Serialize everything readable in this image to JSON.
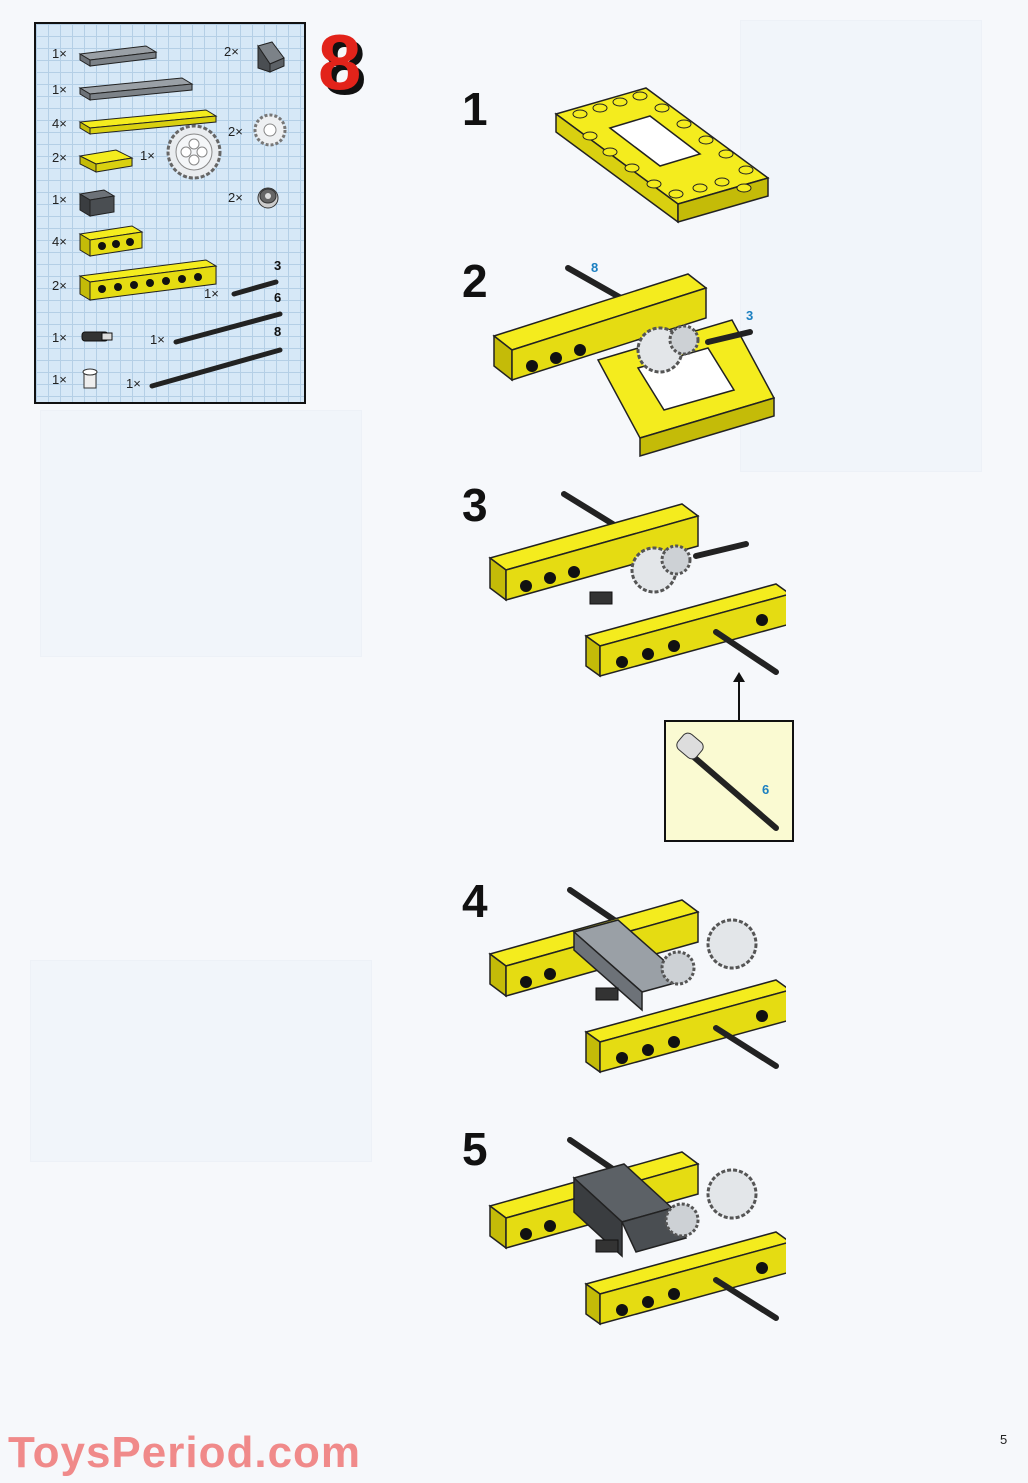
{
  "set_number": "8",
  "parts_list": {
    "rows": [
      {
        "qty": "1×",
        "part": "grey plate 1x4"
      },
      {
        "qty": "1×",
        "part": "grey plate 1x6"
      },
      {
        "qty": "4×",
        "part": "yellow plate 1x8"
      },
      {
        "qty": "2×",
        "part": "yellow plate 2x3"
      },
      {
        "qty": "1×",
        "part": "grey brick 1x2"
      },
      {
        "qty": "4×",
        "part": "yellow technic brick 1x4"
      },
      {
        "qty": "2×",
        "part": "yellow technic brick 1x8"
      },
      {
        "qty": "1×",
        "part": "connector peg"
      },
      {
        "qty": "1×",
        "part": "bush"
      }
    ],
    "right_items": [
      {
        "qty": "2×",
        "part": "grey slope"
      },
      {
        "qty": "1×",
        "part": "large gear"
      },
      {
        "qty": "2×",
        "part": "small gear"
      },
      {
        "qty": "2×",
        "part": "bush wheel"
      },
      {
        "qty": "1×",
        "part": "axle",
        "length": "3"
      },
      {
        "qty": "1×",
        "part": "axle",
        "length": "6"
      },
      {
        "qty": "1×",
        "part": "axle",
        "length": "8"
      }
    ]
  },
  "steps": [
    {
      "number": "1"
    },
    {
      "number": "2",
      "axle_labels": [
        "8",
        "3"
      ]
    },
    {
      "number": "3"
    },
    {
      "number": "4"
    },
    {
      "number": "5"
    }
  ],
  "callout": {
    "axle_label": "6"
  },
  "watermark": "ToysPeriod.com",
  "page_number": "5",
  "colors": {
    "yellow": "#f4ec1e",
    "red": "#e2231a",
    "grey": "#7c8288",
    "dark": "#1a1a1a"
  }
}
